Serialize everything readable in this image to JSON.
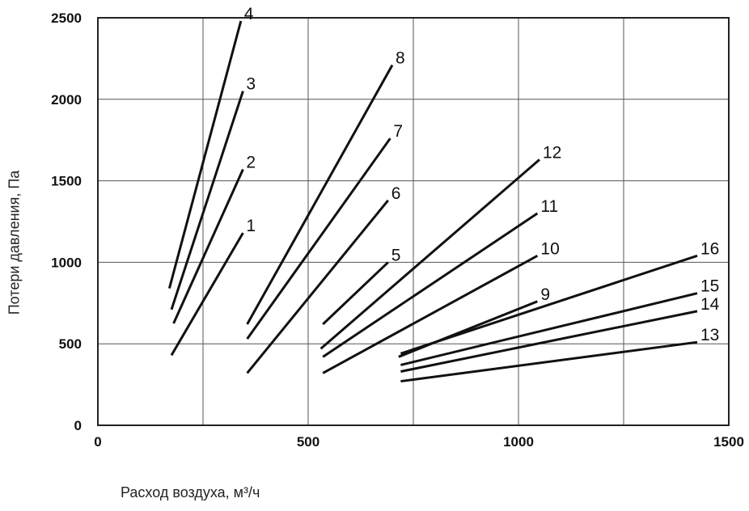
{
  "chart_data": {
    "type": "line",
    "xlabel": "Расход воздуха, м³/ч",
    "ylabel": "Потери давления, Па",
    "xlim": [
      0,
      1500
    ],
    "ylim": [
      0,
      2500
    ],
    "x_ticks": [
      "0",
      "500",
      "1000",
      "1500"
    ],
    "y_ticks": [
      "0",
      "500",
      "1000",
      "1500",
      "2000",
      "2500"
    ],
    "x_ticks_values": [
      0,
      500,
      1000,
      1500
    ],
    "y_ticks_values": [
      0,
      500,
      1000,
      1500,
      2000,
      2500
    ],
    "x_gridlines": [
      0,
      250,
      500,
      750,
      1000,
      1250,
      1500
    ],
    "y_gridlines": [
      0,
      500,
      1000,
      1500,
      2000,
      2500
    ],
    "grid": true,
    "series": [
      {
        "name": "1",
        "x": [
          175,
          345
        ],
        "y": [
          430,
          1180
        ]
      },
      {
        "name": "2",
        "x": [
          180,
          345
        ],
        "y": [
          625,
          1570
        ]
      },
      {
        "name": "3",
        "x": [
          175,
          345
        ],
        "y": [
          710,
          2050
        ]
      },
      {
        "name": "4",
        "x": [
          170,
          340
        ],
        "y": [
          840,
          2480
        ]
      },
      {
        "name": "5",
        "x": [
          535,
          690
        ],
        "y": [
          620,
          1000
        ]
      },
      {
        "name": "6",
        "x": [
          355,
          690
        ],
        "y": [
          320,
          1380
        ]
      },
      {
        "name": "7",
        "x": [
          355,
          695
        ],
        "y": [
          530,
          1760
        ]
      },
      {
        "name": "8",
        "x": [
          355,
          700
        ],
        "y": [
          620,
          2210
        ]
      },
      {
        "name": "9",
        "x": [
          715,
          1045
        ],
        "y": [
          420,
          760
        ]
      },
      {
        "name": "10",
        "x": [
          535,
          1045
        ],
        "y": [
          320,
          1040
        ]
      },
      {
        "name": "11",
        "x": [
          535,
          1045
        ],
        "y": [
          420,
          1300
        ]
      },
      {
        "name": "12",
        "x": [
          530,
          1050
        ],
        "y": [
          470,
          1630
        ]
      },
      {
        "name": "13",
        "x": [
          720,
          1425
        ],
        "y": [
          270,
          510
        ]
      },
      {
        "name": "14",
        "x": [
          720,
          1425
        ],
        "y": [
          330,
          700
        ]
      },
      {
        "name": "15",
        "x": [
          720,
          1425
        ],
        "y": [
          370,
          810
        ]
      },
      {
        "name": "16",
        "x": [
          720,
          1425
        ],
        "y": [
          440,
          1040
        ]
      }
    ]
  }
}
